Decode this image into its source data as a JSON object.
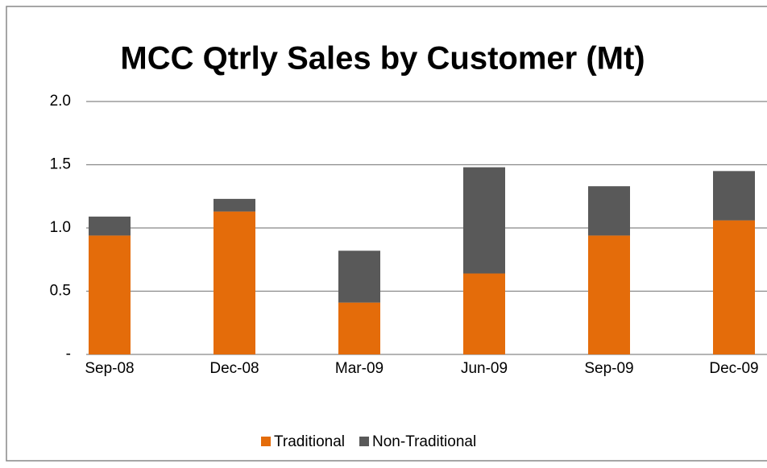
{
  "chart_data": {
    "type": "stacked_bar",
    "title": "MCC Qtrly Sales by Customer (Mt)",
    "categories": [
      "Sep-08",
      "Dec-08",
      "Mar-09",
      "Jun-09",
      "Sep-09",
      "Dec-09"
    ],
    "series": [
      {
        "name": "Traditional",
        "color": "#e46c0a",
        "values": [
          0.94,
          1.13,
          0.41,
          0.64,
          0.94,
          1.06
        ]
      },
      {
        "name": "Non-Traditional",
        "color": "#595959",
        "values": [
          0.15,
          0.1,
          0.41,
          0.84,
          0.39,
          0.39
        ]
      }
    ],
    "ylim": [
      0,
      2
    ],
    "yticks": [
      {
        "value": 0,
        "label": "-"
      },
      0.5,
      {
        "value": 1,
        "label": "1.0"
      },
      1.5,
      {
        "value": 2,
        "label": "2.0"
      }
    ],
    "grid": true,
    "legend": "bottom"
  }
}
